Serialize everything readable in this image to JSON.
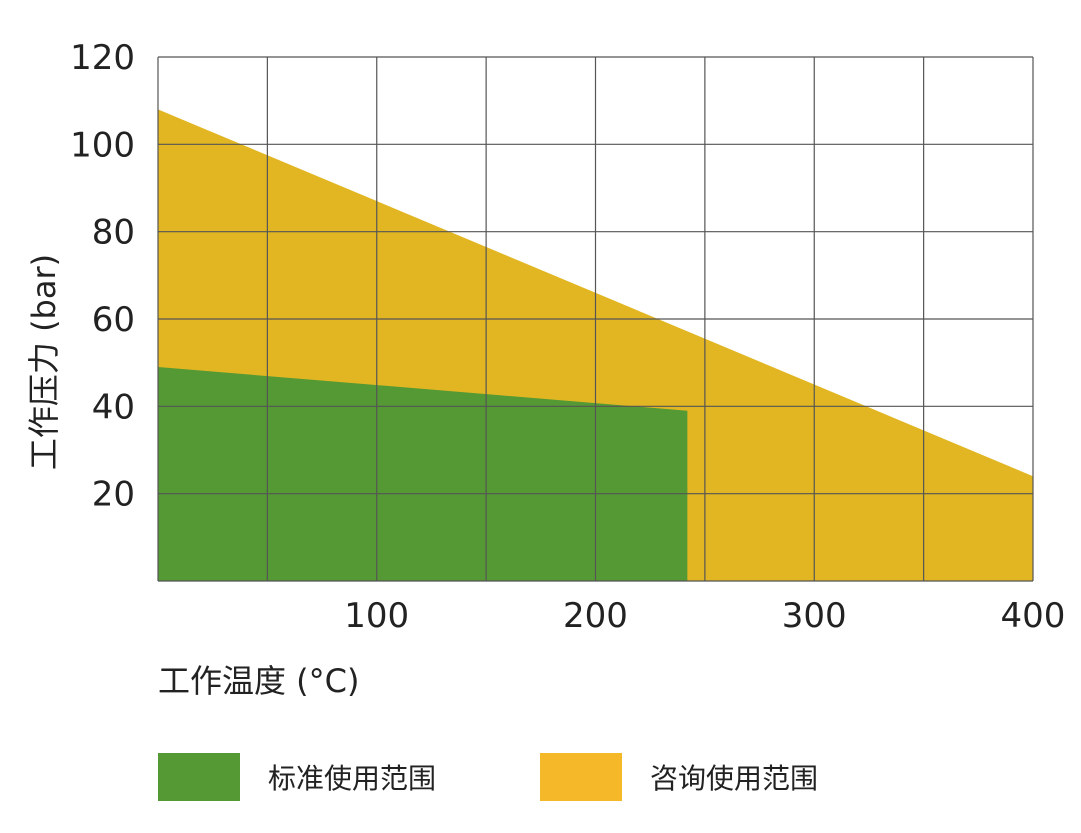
{
  "chart_data": {
    "type": "area",
    "xlabel": "工作温度 (°C)",
    "ylabel": "工作压力 (bar)",
    "xlim": [
      0,
      400
    ],
    "ylim": [
      0,
      120
    ],
    "xticks": [
      100,
      200,
      300,
      400
    ],
    "yticks": [
      20,
      40,
      60,
      80,
      100,
      120
    ],
    "grid": true,
    "legend_position": "bottom",
    "series": [
      {
        "name": "咨询使用范围",
        "color": "#e2b622",
        "x": [
          0,
          400
        ],
        "y": [
          108,
          24
        ]
      },
      {
        "name": "标准使用范围",
        "color": "#559935",
        "x": [
          0,
          242
        ],
        "y": [
          49,
          39
        ]
      }
    ]
  },
  "legend": [
    {
      "label": "标准使用范围",
      "color": "#559935"
    },
    {
      "label": "咨询使用范围",
      "color": "#f5b829"
    }
  ]
}
